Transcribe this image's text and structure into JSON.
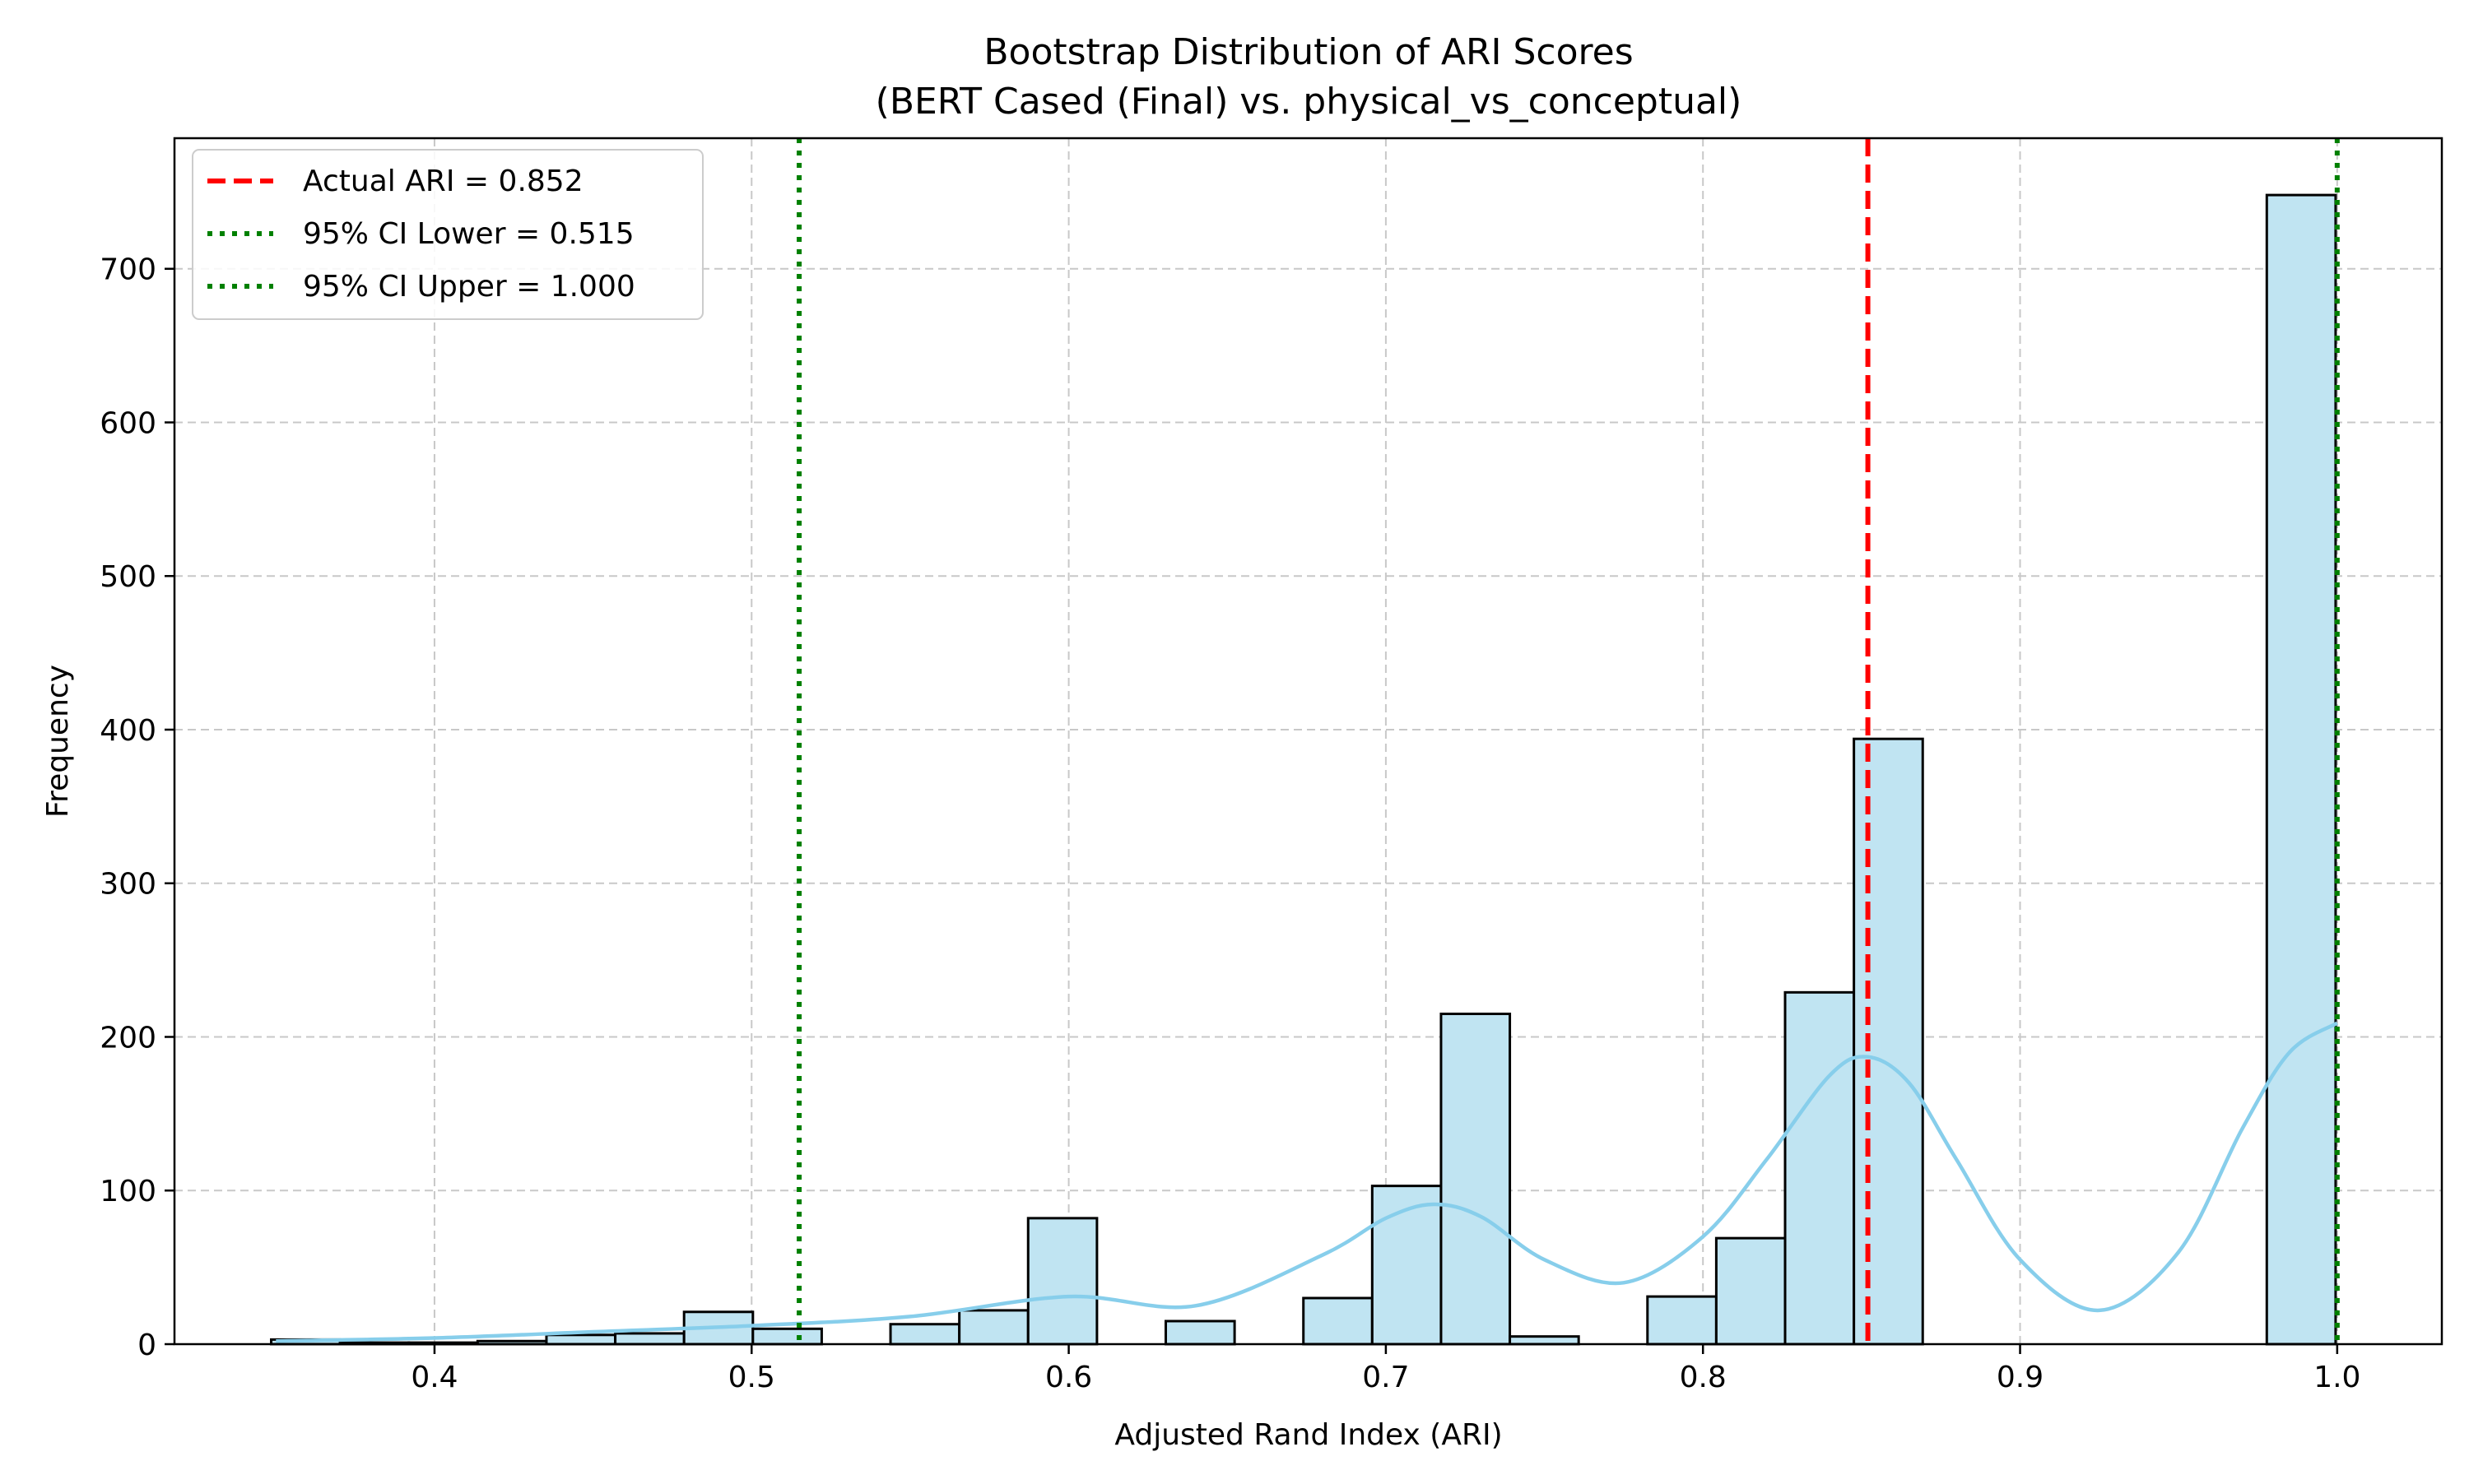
{
  "chart_data": {
    "type": "bar",
    "title": "Bootstrap Distribution of ARI Scores",
    "subtitle": "(BERT Cased (Final) vs. physical_vs_conceptual)",
    "xlabel": "Adjusted Rand Index (ARI)",
    "ylabel": "Frequency",
    "xlim": [
      0.318,
      1.033
    ],
    "ylim": [
      0,
      785
    ],
    "xticks": [
      0.4,
      0.5,
      0.6,
      0.7,
      0.8,
      0.9,
      1.0
    ],
    "xtick_labels": [
      "0.4",
      "0.5",
      "0.6",
      "0.7",
      "0.8",
      "0.9",
      "1.0"
    ],
    "yticks": [
      0,
      100,
      200,
      300,
      400,
      500,
      600,
      700
    ],
    "ytick_labels": [
      "0",
      "100",
      "200",
      "300",
      "400",
      "500",
      "600",
      "700"
    ],
    "grid": true,
    "legend_position": "top-left",
    "bin_edges": [
      0.3485,
      0.3702,
      0.3919,
      0.4136,
      0.4353,
      0.457,
      0.4787,
      0.5004,
      0.5221,
      0.5438,
      0.5655,
      0.5872,
      0.6089,
      0.6306,
      0.6523,
      0.674,
      0.6957,
      0.7174,
      0.7391,
      0.7608,
      0.7825,
      0.8042,
      0.8259,
      0.8476,
      0.8693,
      0.891,
      0.9127,
      0.9344,
      0.9561,
      0.9778,
      0.9995
    ],
    "counts": [
      3,
      1,
      1,
      2,
      6,
      7,
      21,
      10,
      0,
      13,
      22,
      82,
      0,
      15,
      0,
      30,
      103,
      215,
      5,
      0,
      31,
      69,
      229,
      394,
      0,
      0,
      0,
      0,
      0,
      748
    ],
    "kde": {
      "x": [
        0.35,
        0.4,
        0.45,
        0.5,
        0.55,
        0.6,
        0.64,
        0.68,
        0.7,
        0.715,
        0.73,
        0.75,
        0.775,
        0.8,
        0.82,
        0.84,
        0.852,
        0.865,
        0.88,
        0.9,
        0.925,
        0.95,
        0.97,
        0.985,
        1.0
      ],
      "y": [
        2,
        4,
        8,
        12,
        18,
        31,
        25,
        58,
        82,
        91,
        83,
        55,
        40,
        70,
        120,
        175,
        187,
        170,
        120,
        55,
        22,
        60,
        140,
        190,
        209
      ]
    },
    "lines": [
      {
        "label": "Actual ARI = 0.852",
        "x": 0.852,
        "color": "#ff0000",
        "style": "dashed"
      },
      {
        "label": "95% CI Lower = 0.515",
        "x": 0.515,
        "color": "#008000",
        "style": "dotted"
      },
      {
        "label": "95% CI Upper = 1.000",
        "x": 1.0,
        "color": "#008000",
        "style": "dotted"
      }
    ],
    "colors": {
      "bar_fill": "#c0e4f2",
      "bar_edge": "#000000",
      "kde": "#87ceeb",
      "grid": "#c8c8c8"
    }
  }
}
